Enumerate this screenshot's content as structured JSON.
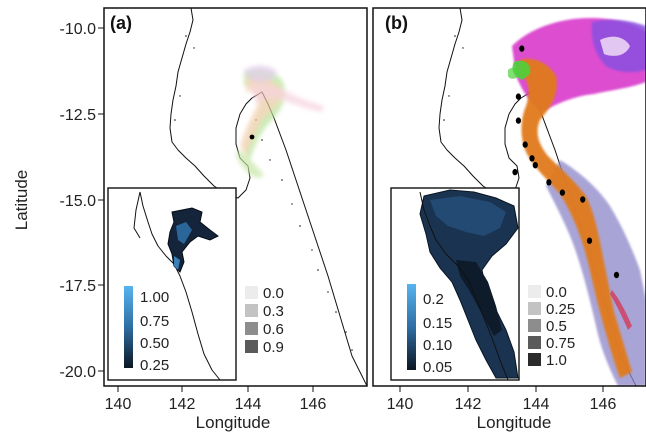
{
  "axes": {
    "xlabel": "Longitude",
    "ylabel": "Latitude",
    "x_ticks": [
      "140",
      "142",
      "144",
      "146"
    ],
    "y_ticks": [
      "-10.0",
      "-12.5",
      "-15.0",
      "-17.5",
      "-20.0"
    ]
  },
  "panels": [
    {
      "label": "(a)",
      "inset_scale": {
        "ticks": [
          "1.00",
          "0.75",
          "0.50",
          "0.25"
        ]
      },
      "legend": {
        "entries": [
          "0.0",
          "0.3",
          "0.6",
          "0.9"
        ]
      }
    },
    {
      "label": "(b)",
      "inset_scale": {
        "ticks": [
          "0.2",
          "0.15",
          "0.10",
          "0.05"
        ]
      },
      "legend": {
        "entries": [
          "0.0",
          "0.25",
          "0.5",
          "0.75",
          "1.0"
        ]
      }
    }
  ],
  "chart_data": {
    "type": "map",
    "x_range": [
      139.6,
      147.0
    ],
    "y_range": [
      -20.3,
      -9.8
    ],
    "legend_placement": "bottom-right of each panel",
    "inset_placement": "bottom-left of each panel",
    "colors": {
      "coastline": "#111111",
      "inset_background": "#0e1a2a",
      "scale_light": "#56b4f0",
      "scale_dark": "#0b1622",
      "track_green": "#4cd23a",
      "track_orange": "#e07a1a",
      "track_magenta": "#d62fc8",
      "track_purple": "#8a4fe0",
      "track_lavender": "#8d86c9",
      "points": "#000000"
    },
    "panel_b_points": [
      {
        "lon": 143.6,
        "lat": -10.6
      },
      {
        "lon": 143.5,
        "lat": -12.0
      },
      {
        "lon": 143.5,
        "lat": -12.7
      },
      {
        "lon": 143.7,
        "lat": -13.4
      },
      {
        "lon": 143.9,
        "lat": -13.8
      },
      {
        "lon": 144.0,
        "lat": -14.0
      },
      {
        "lon": 143.4,
        "lat": -14.2
      },
      {
        "lon": 144.4,
        "lat": -14.5
      },
      {
        "lon": 144.8,
        "lat": -14.8
      },
      {
        "lon": 145.4,
        "lat": -15.0
      },
      {
        "lon": 145.6,
        "lat": -16.2
      },
      {
        "lon": 146.4,
        "lat": -17.2
      }
    ]
  }
}
